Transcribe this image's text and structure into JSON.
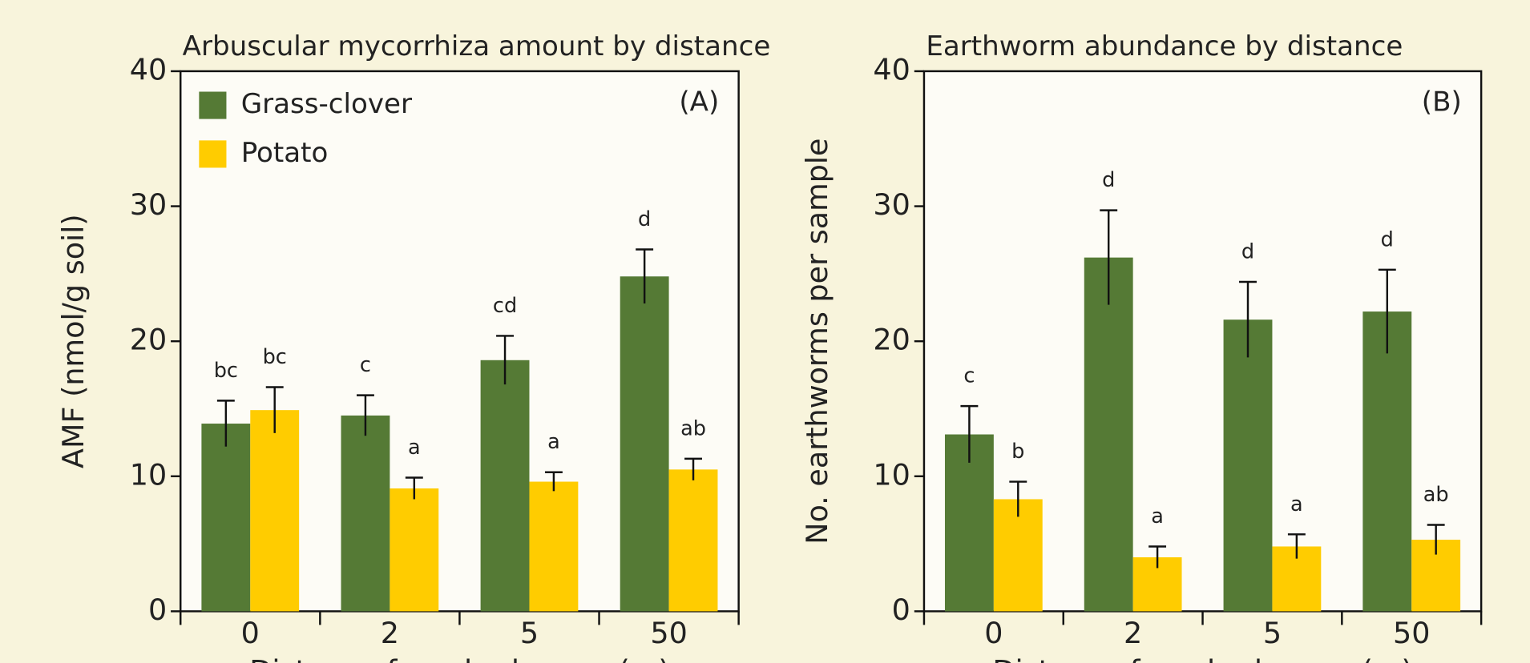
{
  "chart_data": [
    {
      "type": "bar",
      "title": "Arbuscular mycorrhiza amount by distance",
      "panel_label": "(A)",
      "xlabel": "Distance from hedgerow (m)",
      "ylabel": "AMF (nmol/g soil)",
      "categories": [
        "0",
        "2",
        "5",
        "50"
      ],
      "series": [
        {
          "name": "Grass-clover",
          "color": "#557a35",
          "values": [
            13.9,
            14.5,
            18.6,
            24.8
          ],
          "errors": [
            1.7,
            1.5,
            1.8,
            2.0
          ],
          "letters": [
            "bc",
            "c",
            "cd",
            "d"
          ]
        },
        {
          "name": "Potato",
          "color": "#ffcc00",
          "values": [
            14.9,
            9.1,
            9.6,
            10.5
          ],
          "errors": [
            1.7,
            0.8,
            0.7,
            0.8
          ],
          "letters": [
            "bc",
            "a",
            "a",
            "ab"
          ]
        }
      ],
      "ylim": [
        0,
        40
      ],
      "yticks": [
        0,
        10,
        20,
        30,
        40
      ],
      "legend": "upper left"
    },
    {
      "type": "bar",
      "title": "Earthworm abundance by distance",
      "panel_label": "(B)",
      "xlabel": "Distance from hedgerow (m)",
      "ylabel": "No. earthworms per sample",
      "categories": [
        "0",
        "2",
        "5",
        "50"
      ],
      "series": [
        {
          "color": "#557a35",
          "values": [
            13.1,
            26.2,
            21.6,
            22.2
          ],
          "errors": [
            2.1,
            3.5,
            2.8,
            3.1
          ],
          "letters": [
            "c",
            "d",
            "d",
            "d"
          ]
        },
        {
          "color": "#ffcc00",
          "values": [
            8.3,
            4.0,
            4.8,
            5.3
          ],
          "errors": [
            1.3,
            0.8,
            0.9,
            1.1
          ],
          "letters": [
            "b",
            "a",
            "a",
            "ab"
          ]
        }
      ],
      "ylim": [
        0,
        40
      ],
      "yticks": [
        0,
        10,
        20,
        30,
        40
      ]
    }
  ]
}
